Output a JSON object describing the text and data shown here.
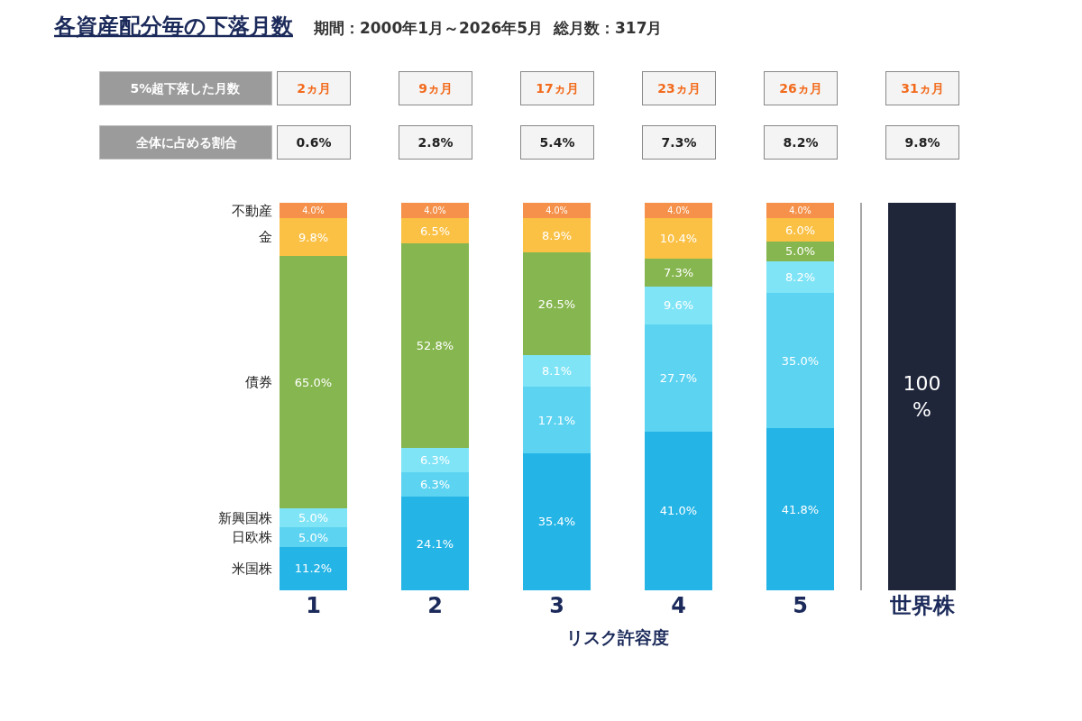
{
  "chart_data": {
    "type": "bar",
    "stacked": true,
    "title": "各資産配分毎の下落月数",
    "subtitle": "期間：2000年1月～2026年5月  総月数：317月",
    "xlabel": "リスク許容度",
    "categories": [
      "1",
      "2",
      "3",
      "4",
      "5",
      "世界株"
    ],
    "series": [
      {
        "name": "米国株",
        "color": "#24b4e6",
        "values": [
          11.2,
          24.1,
          35.4,
          41.0,
          41.8,
          null
        ],
        "value_labels": [
          "11.2%",
          "24.1%",
          "35.4%",
          "41.0%",
          "41.8%",
          null
        ]
      },
      {
        "name": "日欧株",
        "color": "#5cd3f1",
        "values": [
          5.0,
          6.3,
          17.1,
          27.7,
          35.0,
          null
        ],
        "value_labels": [
          "5.0%",
          "6.3%",
          "17.1%",
          "27.7%",
          "35.0%",
          null
        ]
      },
      {
        "name": "新興国株",
        "color": "#80e4f7",
        "values": [
          5.0,
          6.3,
          8.1,
          9.6,
          8.2,
          null
        ],
        "value_labels": [
          "5.0%",
          "6.3%",
          "8.1%",
          "9.6%",
          "8.2%",
          null
        ]
      },
      {
        "name": "債券",
        "color": "#86b64f",
        "values": [
          65.0,
          52.8,
          26.5,
          7.3,
          5.0,
          null
        ],
        "value_labels": [
          "65.0%",
          "52.8%",
          "26.5%",
          "7.3%",
          "5.0%",
          null
        ]
      },
      {
        "name": "金",
        "color": "#fbc145",
        "values": [
          9.8,
          6.5,
          8.9,
          10.4,
          6.0,
          null
        ],
        "value_labels": [
          "9.8%",
          "6.5%",
          "8.9%",
          "10.4%",
          "6.0%",
          null
        ]
      },
      {
        "name": "不動産",
        "color": "#f5914a",
        "values": [
          4.0,
          4.0,
          4.0,
          4.0,
          4.0,
          null
        ],
        "value_labels": [
          "4.0%",
          "4.0%",
          "4.0%",
          "4.0%",
          "4.0%",
          null
        ]
      },
      {
        "color": "#1f263a",
        "values": [
          null,
          null,
          null,
          null,
          null,
          100
        ],
        "value_labels": [
          null,
          null,
          null,
          null,
          null,
          "100\n%"
        ]
      }
    ],
    "annotations": [
      "5%超下落した月数",
      "2ヵ月",
      "9ヵ月",
      "17ヵ月",
      "23ヵ月",
      "26ヵ月",
      "31ヵ月",
      "全体に占める割合",
      "0.6%",
      "2.8%",
      "5.4%",
      "7.3%",
      "8.2%",
      "9.8%"
    ],
    "legend": false
  }
}
